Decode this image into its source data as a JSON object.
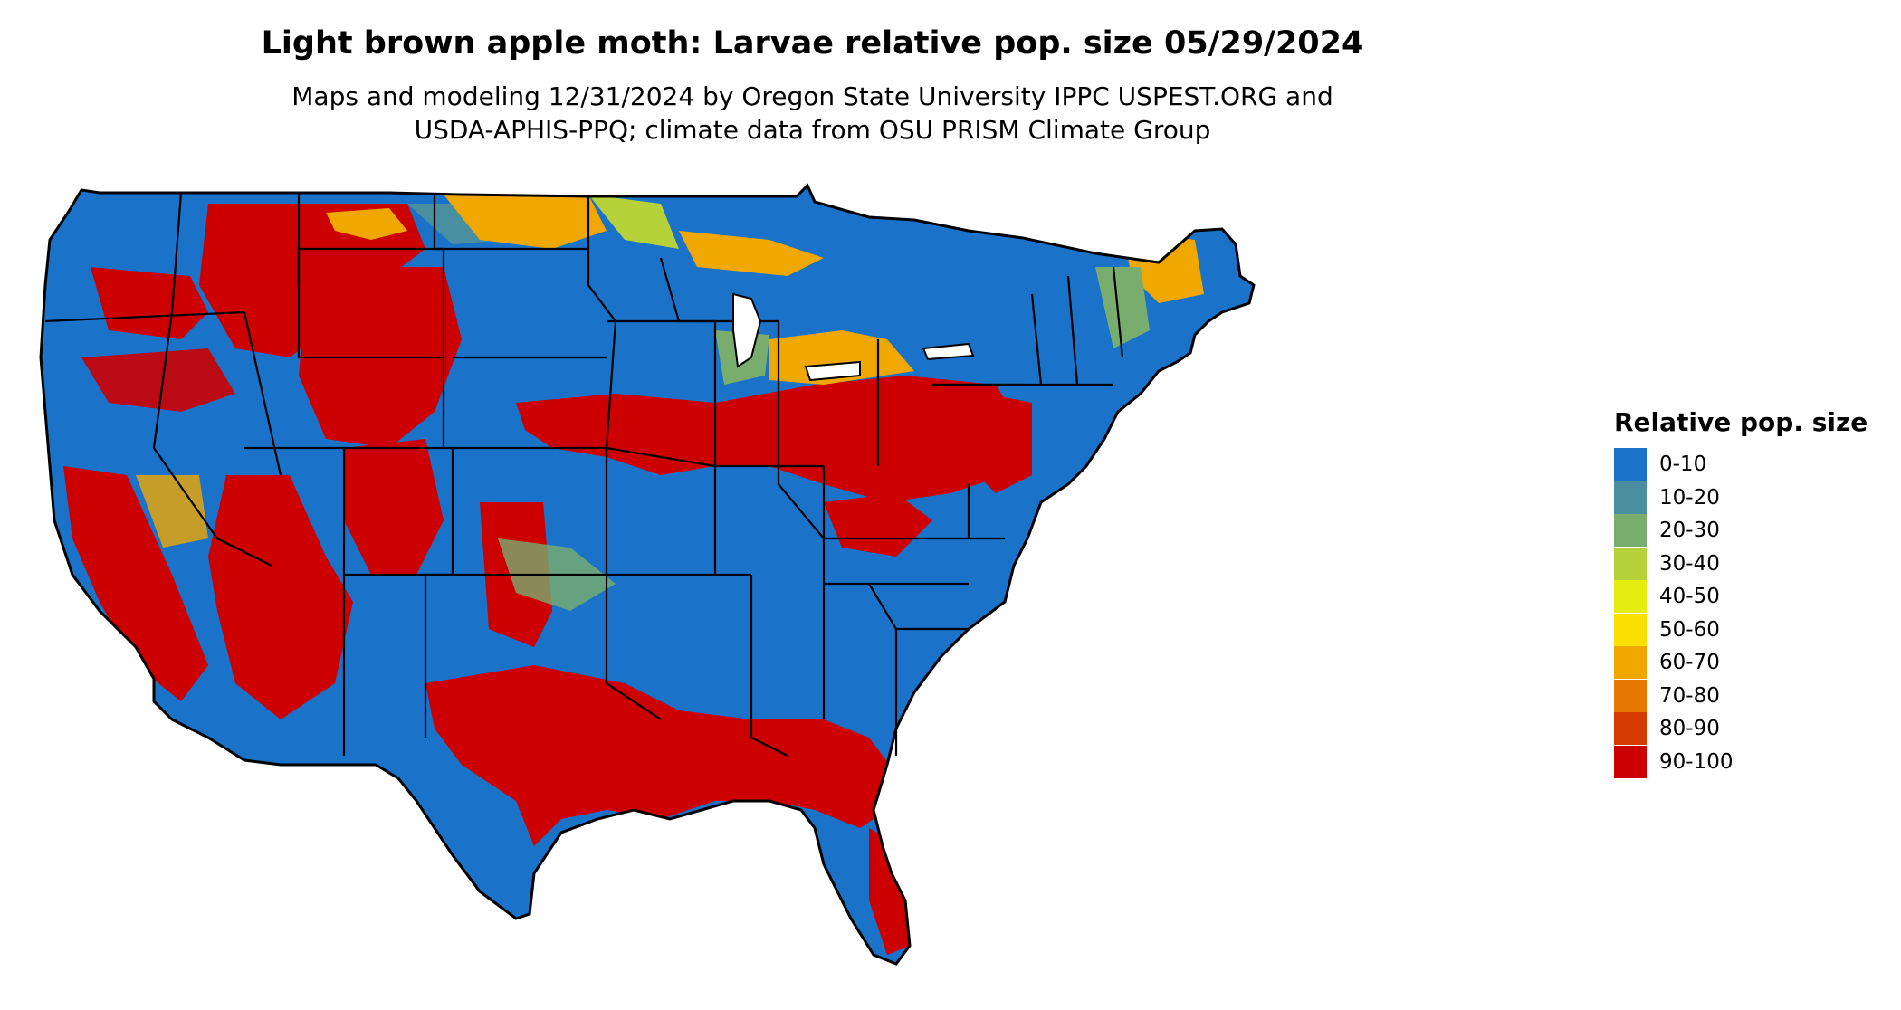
{
  "title": "Light brown apple moth: Larvae relative pop. size 05/29/2024",
  "subtitle_lines": [
    "Maps and modeling 12/31/2024 by Oregon State University IPPC USPEST.ORG and",
    "USDA-APHIS-PPQ; climate data from OSU PRISM Climate Group"
  ],
  "legend": {
    "title": "Relative pop. size",
    "items": [
      {
        "label": "0-10",
        "color": "#1a72c9"
      },
      {
        "label": "10-20",
        "color": "#4a8fa0"
      },
      {
        "label": "20-30",
        "color": "#79ad6e"
      },
      {
        "label": "30-40",
        "color": "#b6d13a"
      },
      {
        "label": "40-50",
        "color": "#e4ec10"
      },
      {
        "label": "50-60",
        "color": "#f9e000"
      },
      {
        "label": "60-70",
        "color": "#f0a800"
      },
      {
        "label": "70-80",
        "color": "#e67800"
      },
      {
        "label": "80-90",
        "color": "#d63a00"
      },
      {
        "label": "90-100",
        "color": "#cc0000"
      }
    ]
  }
}
